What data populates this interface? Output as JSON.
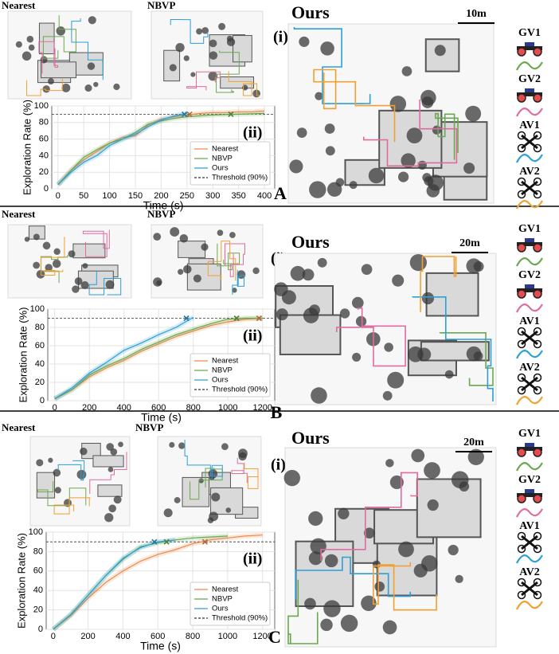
{
  "chart_data": [
    {
      "type": "line",
      "annotation": "(ii)",
      "xlabel": "Time (s)",
      "ylabel": "Exploration Rate (%)",
      "x": [
        0,
        25,
        50,
        75,
        100,
        125,
        150,
        175,
        200,
        225,
        250,
        275,
        300,
        325,
        350,
        375,
        400
      ],
      "xlim": [
        -12,
        420
      ],
      "xticks": [
        0,
        50,
        100,
        150,
        200,
        250,
        300,
        350,
        400
      ],
      "ylim": [
        0,
        100
      ],
      "yticks": [
        0,
        20,
        40,
        60,
        80,
        100
      ],
      "grid": true,
      "legend": "lower right",
      "series": [
        {
          "name": "Nearest",
          "color": "#f08a4b",
          "values": [
            5,
            22,
            35,
            45,
            55,
            62,
            64,
            77,
            84,
            87,
            89,
            91,
            92,
            92,
            93,
            93,
            94
          ],
          "crossing": 255
        },
        {
          "name": "NBVP",
          "color": "#6aa84f",
          "values": [
            5,
            22,
            38,
            47,
            55,
            60,
            68,
            78,
            82,
            85,
            87,
            88,
            89,
            89.5,
            90,
            90.5,
            91
          ],
          "crossing": 335
        },
        {
          "name": "Ours",
          "color": "#2b9fd8",
          "values": [
            5,
            20,
            32,
            40,
            52,
            60,
            66,
            75,
            83,
            88,
            91,
            null,
            null,
            null,
            null,
            null,
            null
          ],
          "crossing": 245
        }
      ],
      "threshold": {
        "name": "Threshold (90%)",
        "value": 90
      }
    },
    {
      "type": "line",
      "annotation": "(ii)",
      "xlabel": "Time (s)",
      "ylabel": "Exploration Rate (%)",
      "x": [
        0,
        100,
        200,
        300,
        400,
        500,
        600,
        700,
        800,
        900,
        1000,
        1100,
        1200
      ],
      "xlim": [
        -40,
        1270
      ],
      "xticks": [
        0,
        200,
        400,
        600,
        800,
        1000,
        1200
      ],
      "ylim": [
        0,
        100
      ],
      "yticks": [
        0,
        20,
        40,
        60,
        80,
        100
      ],
      "grid": true,
      "legend": "lower right",
      "series": [
        {
          "name": "Nearest",
          "color": "#f08a4b",
          "values": [
            2,
            12,
            26,
            36,
            44,
            54,
            62,
            70,
            76,
            82,
            86,
            89,
            90
          ],
          "crossing": 1180
        },
        {
          "name": "NBVP",
          "color": "#6aa84f",
          "values": [
            2,
            12,
            28,
            38,
            46,
            56,
            64,
            72,
            78,
            84,
            89,
            90,
            90
          ],
          "crossing": 1050
        },
        {
          "name": "Ours",
          "color": "#2b9fd8",
          "values": [
            2,
            14,
            30,
            42,
            55,
            63,
            72,
            80,
            91,
            null,
            null,
            null,
            null
          ],
          "crossing": 760
        }
      ],
      "threshold": {
        "name": "Threshold (90%)",
        "value": 90
      }
    },
    {
      "type": "line",
      "annotation": "(ii)",
      "xlabel": "Time (s)",
      "ylabel": "Exploration Rate (%)",
      "x": [
        0,
        100,
        200,
        300,
        400,
        500,
        600,
        700,
        800,
        900,
        1000,
        1100,
        1200
      ],
      "xlim": [
        -40,
        1270
      ],
      "xticks": [
        0,
        200,
        400,
        600,
        800,
        1000,
        1200
      ],
      "ylim": [
        0,
        100
      ],
      "yticks": [
        0,
        20,
        40,
        60,
        80,
        100
      ],
      "grid": true,
      "legend": "lower right",
      "series": [
        {
          "name": "Nearest",
          "color": "#f08a4b",
          "values": [
            0,
            14,
            32,
            48,
            60,
            70,
            77,
            82,
            88,
            92,
            94,
            96,
            97
          ],
          "crossing": 870
        },
        {
          "name": "NBVP",
          "color": "#6aa84f",
          "values": [
            0,
            15,
            35,
            55,
            72,
            85,
            89,
            92,
            94,
            95,
            96,
            null,
            null
          ],
          "crossing": 650
        },
        {
          "name": "Ours",
          "color": "#2b9fd8",
          "values": [
            0,
            15,
            35,
            55,
            73,
            84,
            90,
            92,
            null,
            null,
            null,
            null,
            null
          ],
          "crossing": 580
        }
      ],
      "threshold": {
        "name": "Threshold (90%)",
        "value": 90
      }
    }
  ],
  "panels": [
    {
      "label": "A",
      "maps": [
        "Nearest",
        "NBVP"
      ],
      "map_label": "(i)",
      "main_map_title": "Ours",
      "scale": "10m",
      "legend": [
        {
          "name": "GV1",
          "kind": "ground",
          "color": "#6aa84f"
        },
        {
          "name": "GV2",
          "kind": "ground",
          "color": "#e06c9f"
        },
        {
          "name": "AV1",
          "kind": "aerial",
          "color": "#2b9fd8"
        },
        {
          "name": "AV2",
          "kind": "aerial",
          "color": "#f0a030"
        }
      ]
    },
    {
      "label": "B",
      "maps": [
        "Nearest",
        "NBVP"
      ],
      "map_label": "(i)",
      "main_map_title": "Ours",
      "scale": "20m",
      "legend": [
        {
          "name": "GV1",
          "kind": "ground",
          "color": "#6aa84f"
        },
        {
          "name": "GV2",
          "kind": "ground",
          "color": "#e06c9f"
        },
        {
          "name": "AV1",
          "kind": "aerial",
          "color": "#2b9fd8"
        },
        {
          "name": "AV2",
          "kind": "aerial",
          "color": "#f0a030"
        }
      ]
    },
    {
      "label": "C",
      "maps": [
        "Nearest",
        "NBVP"
      ],
      "map_label": "(i)",
      "main_map_title": "Ours",
      "scale": "20m",
      "legend": [
        {
          "name": "GV1",
          "kind": "ground",
          "color": "#6aa84f"
        },
        {
          "name": "GV2",
          "kind": "ground",
          "color": "#e06c9f"
        },
        {
          "name": "AV1",
          "kind": "aerial",
          "color": "#2b9fd8"
        },
        {
          "name": "AV2",
          "kind": "aerial",
          "color": "#f0a030"
        }
      ]
    }
  ]
}
